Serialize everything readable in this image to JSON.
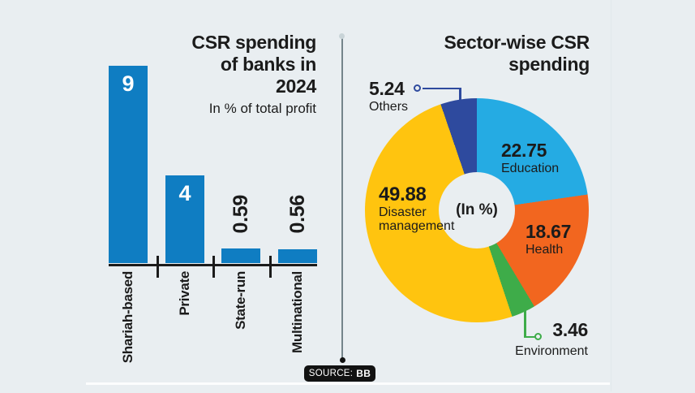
{
  "background_color": "#e9eef1",
  "text_color": "#1b1b1b",
  "chart_data": [
    {
      "type": "bar",
      "title": "CSR spending of banks in 2024",
      "title_lines": [
        "CSR spending",
        "of banks in",
        "2024"
      ],
      "subtitle": "In % of total profit",
      "categories": [
        "Shariah-based",
        "Private",
        "State-run",
        "Multinational"
      ],
      "values": [
        9,
        4,
        0.59,
        0.56
      ],
      "bar_color": "#0f7dc2",
      "value_label_color_inside": "#ffffff",
      "value_label_color_outside": "#1b1b1b",
      "ylim": [
        0,
        9
      ],
      "axis_color": "#1b1b1b",
      "grid": false,
      "legend": false
    },
    {
      "type": "pie",
      "subtype": "donut",
      "title": "Sector-wise CSR spending",
      "title_lines": [
        "Sector-wise CSR",
        "spending"
      ],
      "center_label": "(In %)",
      "start_angle_deg": 0,
      "direction": "clockwise",
      "slices": [
        {
          "label": "Education",
          "value": 22.75,
          "color": "#25abe3"
        },
        {
          "label": "Health",
          "value": 18.67,
          "color": "#f2661f"
        },
        {
          "label": "Environment",
          "value": 3.46,
          "color": "#3eac49"
        },
        {
          "label": "Disaster management",
          "value": 49.88,
          "color": "#ffc40f"
        },
        {
          "label": "Others",
          "value": 5.24,
          "color": "#2e4a9e"
        }
      ],
      "callout_colors": {
        "others": "#2e4a9e",
        "environment": "#3eac49"
      },
      "legend": false
    }
  ],
  "source": {
    "prefix": "SOURCE:",
    "value": "BB"
  }
}
